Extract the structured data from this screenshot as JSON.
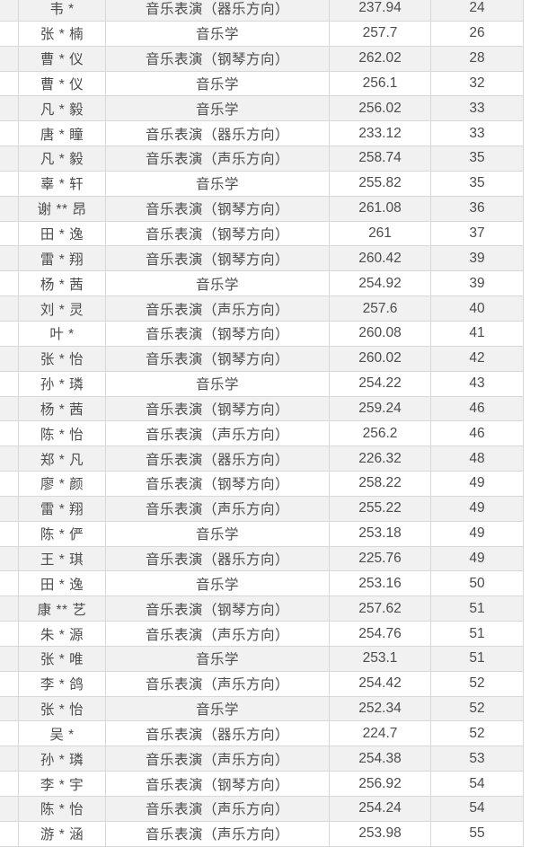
{
  "table": {
    "rows": [
      {
        "name": "韦 *",
        "major": "音乐表演（器乐方向）",
        "score": "237.94",
        "rank": "24"
      },
      {
        "name": "张 * 楠",
        "major": "音乐学",
        "score": "257.7",
        "rank": "26"
      },
      {
        "name": "曹 * 仪",
        "major": "音乐表演（钢琴方向）",
        "score": "262.02",
        "rank": "28"
      },
      {
        "name": "曹 * 仪",
        "major": "音乐学",
        "score": "256.1",
        "rank": "32"
      },
      {
        "name": "凡 * 毅",
        "major": "音乐学",
        "score": "256.02",
        "rank": "33"
      },
      {
        "name": "唐 * 瞳",
        "major": "音乐表演（器乐方向）",
        "score": "233.12",
        "rank": "33"
      },
      {
        "name": "凡 * 毅",
        "major": "音乐表演（声乐方向）",
        "score": "258.74",
        "rank": "35"
      },
      {
        "name": "辜 * 轩",
        "major": "音乐学",
        "score": "255.82",
        "rank": "35"
      },
      {
        "name": "谢 ** 昂",
        "major": "音乐表演（钢琴方向）",
        "score": "261.08",
        "rank": "36"
      },
      {
        "name": "田 * 逸",
        "major": "音乐表演（钢琴方向）",
        "score": "261",
        "rank": "37"
      },
      {
        "name": "雷 * 翔",
        "major": "音乐表演（钢琴方向）",
        "score": "260.42",
        "rank": "39"
      },
      {
        "name": "杨 * 茜",
        "major": "音乐学",
        "score": "254.92",
        "rank": "39"
      },
      {
        "name": "刘 * 灵",
        "major": "音乐表演（声乐方向）",
        "score": "257.6",
        "rank": "40"
      },
      {
        "name": "叶 *",
        "major": "音乐表演（钢琴方向）",
        "score": "260.08",
        "rank": "41"
      },
      {
        "name": "张 * 怡",
        "major": "音乐表演（钢琴方向）",
        "score": "260.02",
        "rank": "42"
      },
      {
        "name": "孙 * 璘",
        "major": "音乐学",
        "score": "254.22",
        "rank": "43"
      },
      {
        "name": "杨 * 茜",
        "major": "音乐表演（钢琴方向）",
        "score": "259.24",
        "rank": "46"
      },
      {
        "name": "陈 * 怡",
        "major": "音乐表演（声乐方向）",
        "score": "256.2",
        "rank": "46"
      },
      {
        "name": "郑 * 凡",
        "major": "音乐表演（器乐方向）",
        "score": "226.32",
        "rank": "48"
      },
      {
        "name": "廖 * 颜",
        "major": "音乐表演（钢琴方向）",
        "score": "258.22",
        "rank": "49"
      },
      {
        "name": "雷 * 翔",
        "major": "音乐表演（声乐方向）",
        "score": "255.22",
        "rank": "49"
      },
      {
        "name": "陈 * 俨",
        "major": "音乐学",
        "score": "253.18",
        "rank": "49"
      },
      {
        "name": "王 * 琪",
        "major": "音乐表演（器乐方向）",
        "score": "225.76",
        "rank": "49"
      },
      {
        "name": "田 * 逸",
        "major": "音乐学",
        "score": "253.16",
        "rank": "50"
      },
      {
        "name": "康 ** 艺",
        "major": "音乐表演（钢琴方向）",
        "score": "257.62",
        "rank": "51"
      },
      {
        "name": "朱 * 源",
        "major": "音乐表演（声乐方向）",
        "score": "254.76",
        "rank": "51"
      },
      {
        "name": "张 * 唯",
        "major": "音乐学",
        "score": "253.1",
        "rank": "51"
      },
      {
        "name": "李 * 鸽",
        "major": "音乐表演（声乐方向）",
        "score": "254.42",
        "rank": "52"
      },
      {
        "name": "张 * 怡",
        "major": "音乐学",
        "score": "252.34",
        "rank": "52"
      },
      {
        "name": "吴 *",
        "major": "音乐表演（器乐方向）",
        "score": "224.7",
        "rank": "52"
      },
      {
        "name": "孙 * 璘",
        "major": "音乐表演（声乐方向）",
        "score": "254.38",
        "rank": "53"
      },
      {
        "name": "李 * 宇",
        "major": "音乐表演（钢琴方向）",
        "score": "256.92",
        "rank": "54"
      },
      {
        "name": "陈 * 怡",
        "major": "音乐表演（声乐方向）",
        "score": "254.24",
        "rank": "54"
      },
      {
        "name": "游 * 涵",
        "major": "音乐表演（声乐方向）",
        "score": "253.98",
        "rank": "55"
      }
    ]
  },
  "colors": {
    "row_alt_background": "#f1f1f1",
    "row_background": "#ffffff",
    "border": "#d8d8d8",
    "text": "#4c4c4c"
  }
}
